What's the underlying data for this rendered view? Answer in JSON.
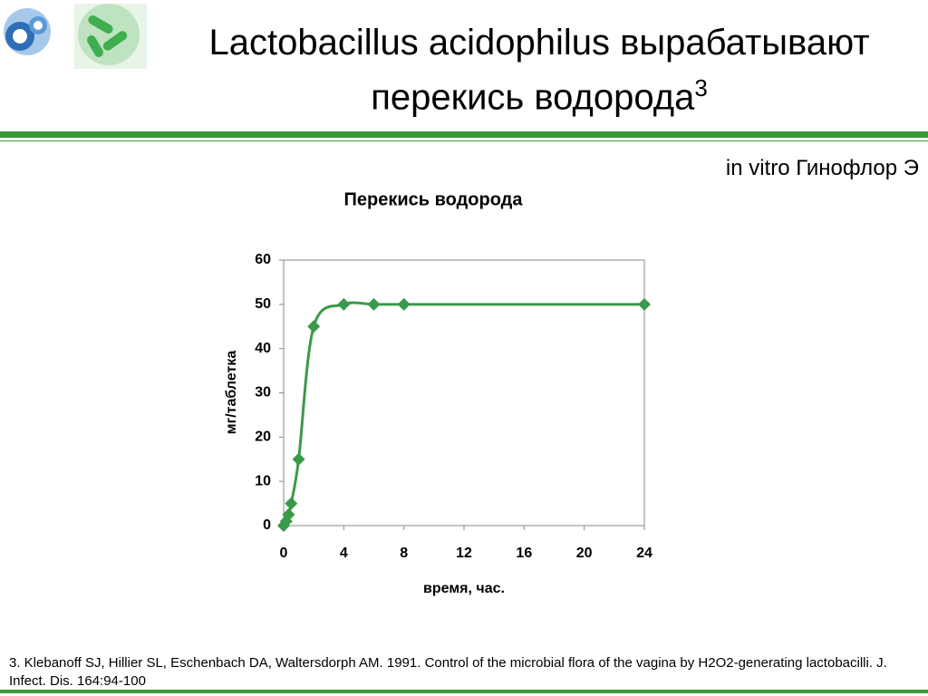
{
  "title_lines": [
    "Lactobacillus acidophilus вырабатывают",
    "перекись водорода"
  ],
  "title_superscript": "3",
  "subtitle": "in vitro Гинофлор Э",
  "footnote": "3. Klebanoff SJ, Hillier SL, Eschenbach DA, Waltersdorph AM. 1991. Control of the microbial flora of the vagina by H2O2-generating lactobacilli. J. Infect. Dis. 164:94-100",
  "chart_data": {
    "type": "line",
    "title": "Перекись водорода",
    "x_label": "время, час.",
    "y_label": "мг/таблетка",
    "x": [
      0,
      0.17,
      0.33,
      0.5,
      1,
      2,
      4,
      6,
      8,
      24
    ],
    "series": [
      {
        "name": "Перекись водорода",
        "color": "#3a9a4a",
        "values": [
          0,
          1,
          2.5,
          5,
          15,
          45,
          50,
          50,
          50,
          50
        ]
      }
    ],
    "xlim": [
      0,
      24
    ],
    "xticks": [
      0,
      4,
      8,
      12,
      16,
      20,
      24
    ],
    "ylim": [
      0,
      60
    ],
    "yticks": [
      0,
      10,
      20,
      30,
      40,
      50,
      60
    ],
    "grid": false
  }
}
